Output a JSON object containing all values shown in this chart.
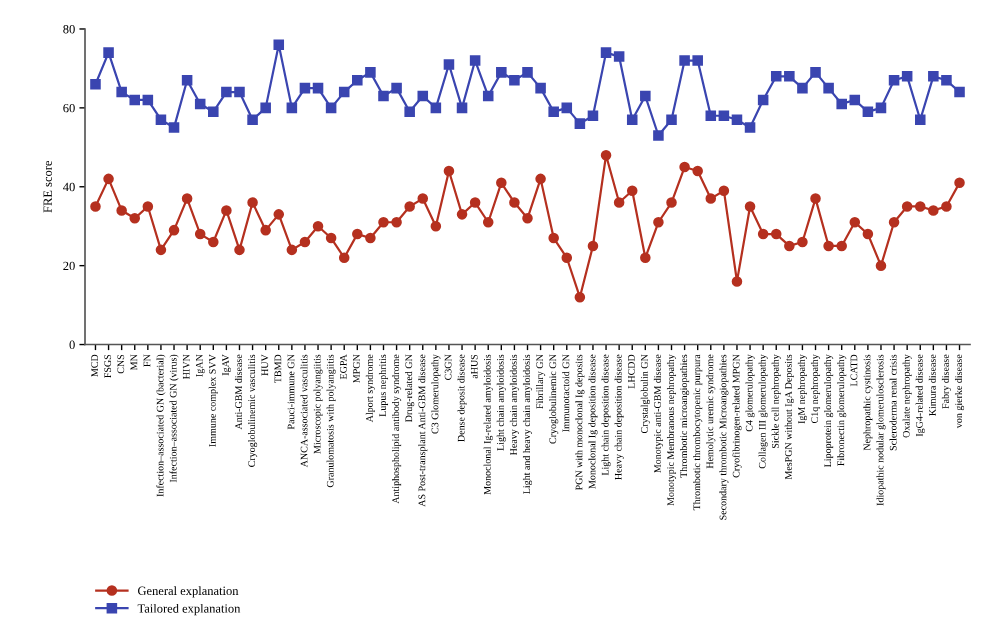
{
  "chart_data": {
    "type": "line",
    "ylabel": "FRE score",
    "categories": [
      "MCD",
      "FSGS",
      "CNS",
      "MN",
      "FN",
      "Infection–associated GN (bacterial)",
      "Infection–associated GN (virus)",
      "HIVN",
      "IgAN",
      "Immune complex SVV",
      "IgAV",
      "Anti-GBM disease",
      "Cryoglobulinemic vasculitis",
      "HUV",
      "TBMD",
      "Pauci-immune GN",
      "ANCA-associated vasculitis",
      "Microscopic polyangiitis",
      "Granulomatosis with polyangiitis",
      "EGPA",
      "MPGN",
      "Alport syndrome",
      "Lupus nephritis",
      "Antiphospholipid antibody syndrome",
      "Drug-related GN",
      "AS Post-transplant Anti-GBM disease",
      "C3 Glomerulopathy",
      "C3GN",
      "Dense deposit disease",
      "aHUS",
      "Monoclonal Ig-related amyloidosis",
      "Light chain amyloidosis",
      "Heavy chain amyloidosis",
      "Light and heavy chain amyloidosis",
      "Fibrillary GN",
      "Cryoglobulinemic GN",
      "Immunotactoid GN",
      "PGN with monoclonal Ig deposits",
      "Monoclonal Ig deposition disease",
      "Light chain deposition disease",
      "Heavy chain deposition disease",
      "LHCDD",
      "Crystalglobulin GN",
      "Monotypic anti-GBM disease",
      "Monotypic Membranous nephropathy",
      "Thrombotic microangiopathies",
      "Thrombotic thrombocytopenic purpura",
      "Hemolytic uremic syndrome",
      "Secondary thrombotic Microangiopathies",
      "Cryofibrinogen-related MPGN",
      "C4 glomerulopathy",
      "Collagen III glomerulopathy",
      "Sickle cell nephropathy",
      "MesPGN without IgA Deposits",
      "IgM nephropathy",
      "C1q nephropathy",
      "Lipoprotein glomerulopathy",
      "Fibronectin glomerulopathy",
      "LCATD",
      "Nephropathic cystinosis",
      "Idiopathic nodular glomerulosclerosis",
      "Scleroderma renal crisis",
      "Oxalate nephropathy",
      "IgG4-related disease",
      "Kimura disease",
      "Fabry disease",
      "von gierke disease"
    ],
    "series": [
      {
        "name": "General explanation",
        "color": "#b5301f",
        "values": [
          35,
          42,
          34,
          32,
          35,
          24,
          29,
          37,
          28,
          26,
          34,
          24,
          36,
          29,
          33,
          24,
          26,
          30,
          27,
          22,
          28,
          27,
          31,
          31,
          35,
          37,
          30,
          44,
          33,
          36,
          31,
          41,
          36,
          32,
          42,
          27,
          22,
          12,
          25,
          48,
          36,
          39,
          22,
          31,
          36,
          45,
          44,
          37,
          39,
          16,
          35,
          28,
          28,
          25,
          26,
          37,
          25,
          25,
          31,
          28,
          20,
          31,
          35,
          35,
          34,
          35,
          41
        ]
      },
      {
        "name": "Tailored explanation",
        "color": "#3a45b0",
        "values": [
          66,
          74,
          64,
          62,
          62,
          57,
          55,
          67,
          61,
          59,
          64,
          64,
          57,
          60,
          76,
          60,
          65,
          65,
          60,
          64,
          67,
          69,
          63,
          65,
          59,
          63,
          60,
          71,
          60,
          72,
          63,
          69,
          67,
          69,
          65,
          59,
          60,
          56,
          58,
          74,
          73,
          57,
          63,
          53,
          57,
          72,
          72,
          58,
          58,
          57,
          55,
          62,
          68,
          68,
          65,
          69,
          65,
          61,
          62,
          59,
          60,
          67,
          68,
          57,
          68,
          67,
          64
        ]
      }
    ],
    "ylim": [
      0,
      80
    ],
    "yticks": [
      0,
      20,
      40,
      60,
      80
    ],
    "grid": false,
    "legend": "bottom left",
    "marker": [
      "circle",
      "square"
    ],
    "line_style": "solid"
  }
}
